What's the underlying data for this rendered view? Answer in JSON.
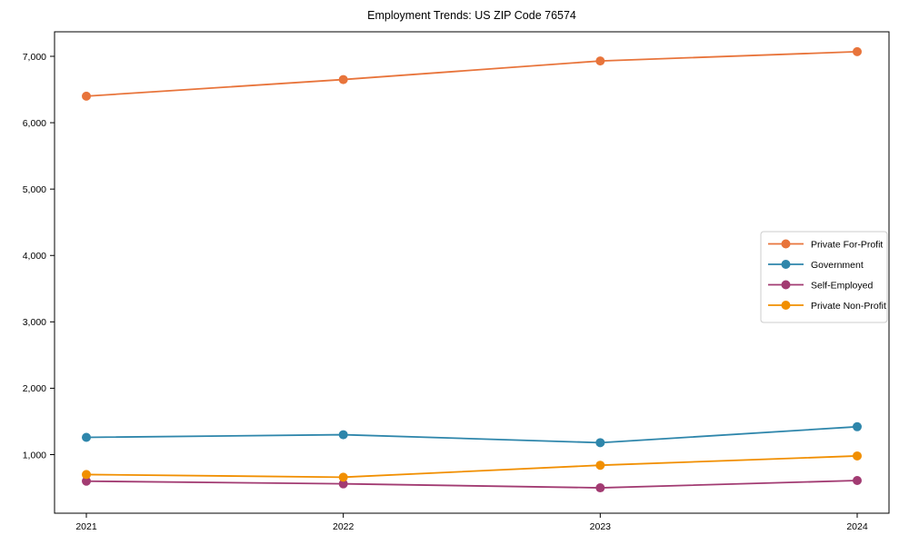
{
  "title": "Employment Trends: US ZIP Code 76574",
  "chart_data": {
    "type": "line",
    "title": "Employment Trends: US ZIP Code 76574",
    "categories": [
      "2021",
      "2022",
      "2023",
      "2024"
    ],
    "series": [
      {
        "name": "Private For-Profit",
        "color": "#E8743B",
        "values": [
          6400,
          6650,
          6930,
          7070
        ]
      },
      {
        "name": "Government",
        "color": "#2E86AB",
        "values": [
          1260,
          1300,
          1180,
          1420
        ]
      },
      {
        "name": "Self-Employed",
        "color": "#A23B72",
        "values": [
          600,
          560,
          500,
          610
        ]
      },
      {
        "name": "Private Non-Profit",
        "color": "#F18F01",
        "values": [
          700,
          660,
          840,
          980
        ]
      }
    ],
    "yticks": [
      1000,
      2000,
      3000,
      4000,
      5000,
      6000,
      7000
    ],
    "ytick_labels": [
      "1,000",
      "2,000",
      "3,000",
      "4,000",
      "5,000",
      "6,000",
      "7,000"
    ],
    "xlabel": "",
    "ylabel": "",
    "ylim": [
      100,
      7400
    ],
    "grid": false,
    "legend_position": "center-right",
    "marker": "circle",
    "axis_color": "#000000",
    "legend_border_color": "#cccccc",
    "legend_bg_color": "#ffffff"
  }
}
